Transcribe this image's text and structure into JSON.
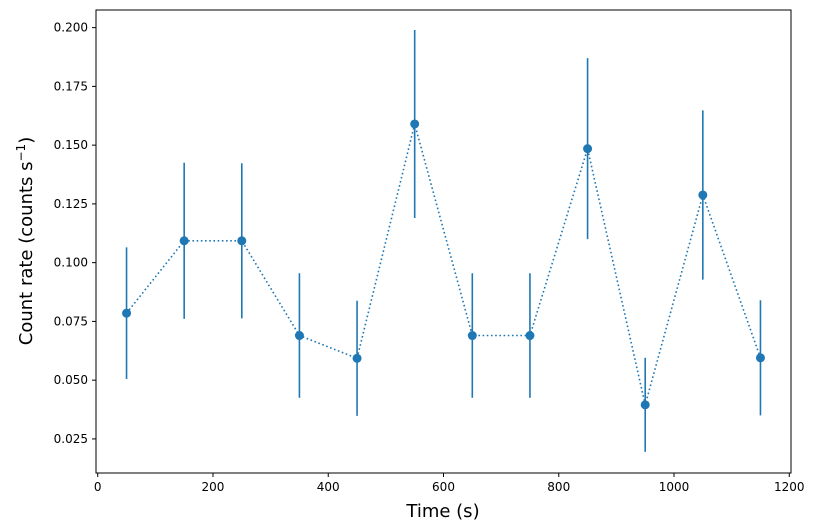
{
  "chart_data": {
    "type": "scatter",
    "title": "",
    "xlabel": "Time (s)",
    "ylabel_main": "Count rate (counts s",
    "ylabel_sup": "−1",
    "ylabel_close": ")",
    "xlim": [
      -3,
      1203
    ],
    "ylim": [
      0.0105,
      0.2075
    ],
    "xticks": [
      0,
      200,
      400,
      600,
      800,
      1000,
      1200
    ],
    "xtick_labels": [
      "0",
      "200",
      "400",
      "600",
      "800",
      "1000",
      "1200"
    ],
    "yticks": [
      0.025,
      0.05,
      0.075,
      0.1,
      0.125,
      0.15,
      0.175,
      0.2
    ],
    "ytick_labels": [
      "0.025",
      "0.050",
      "0.075",
      "0.100",
      "0.125",
      "0.150",
      "0.175",
      "0.200"
    ],
    "grid": false,
    "legend": "none",
    "color": "#1f77b4",
    "line_style": "dotted",
    "series": [
      {
        "x": [
          50,
          150,
          250,
          350,
          450,
          550,
          650,
          750,
          850,
          950,
          1050,
          1150
        ],
        "y": [
          0.0785,
          0.1093,
          0.1093,
          0.069,
          0.0593,
          0.159,
          0.069,
          0.069,
          0.1485,
          0.0395,
          0.1288,
          0.0595
        ],
        "yerr": [
          0.028,
          0.0332,
          0.033,
          0.0265,
          0.0245,
          0.04,
          0.0265,
          0.0265,
          0.0385,
          0.02,
          0.036,
          0.0245
        ]
      }
    ]
  }
}
